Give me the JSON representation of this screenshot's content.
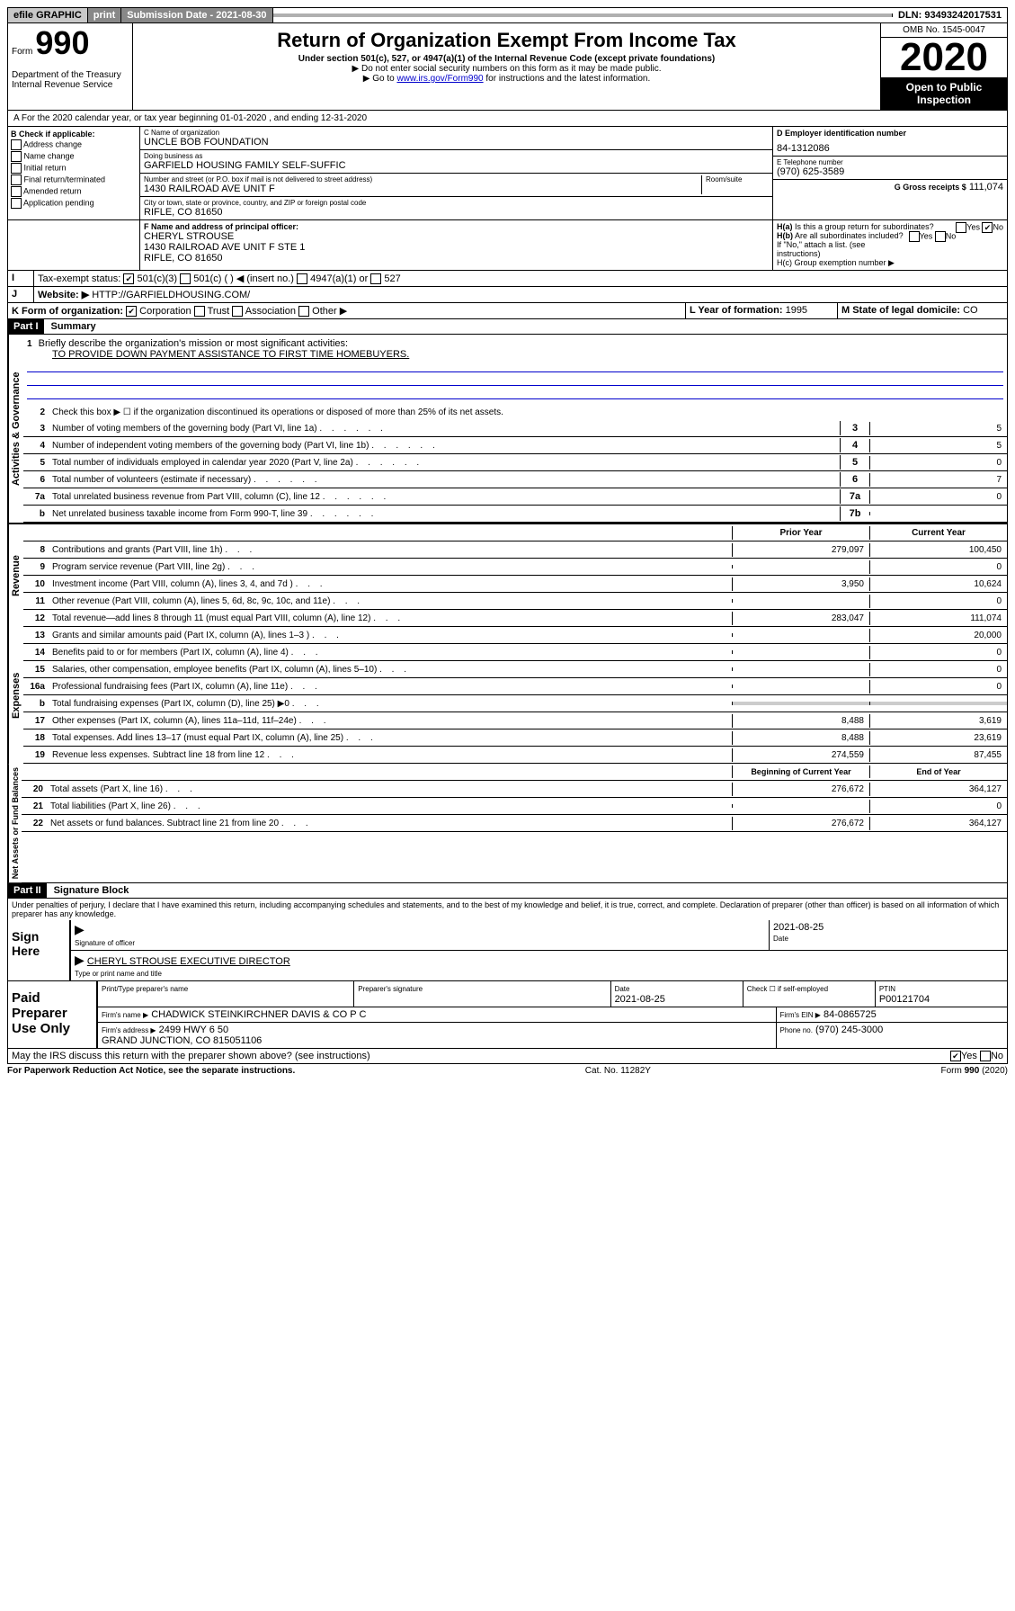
{
  "topbar": {
    "efile": "efile GRAPHIC",
    "print": "print",
    "submission_label": "Submission Date - 2021-08-30",
    "dln_label": "DLN: 93493242017531"
  },
  "header": {
    "form_prefix": "Form",
    "form_number": "990",
    "title": "Return of Organization Exempt From Income Tax",
    "subtitle": "Under section 501(c), 527, or 4947(a)(1) of the Internal Revenue Code (except private foundations)",
    "note1": "▶ Do not enter social security numbers on this form as it may be made public.",
    "note2_pre": "▶ Go to ",
    "note2_link": "www.irs.gov/Form990",
    "note2_post": " for instructions and the latest information.",
    "dept": "Department of the Treasury\nInternal Revenue Service",
    "omb": "OMB No. 1545-0047",
    "year": "2020",
    "open_public": "Open to Public Inspection"
  },
  "sectionA": "A For the 2020 calendar year, or tax year beginning 01-01-2020    , and ending 12-31-2020",
  "boxB": {
    "label": "B Check if applicable:",
    "opts": [
      "Address change",
      "Name change",
      "Initial return",
      "Final return/terminated",
      "Amended return",
      "Application pending"
    ]
  },
  "boxC": {
    "name_label": "C Name of organization",
    "name": "UNCLE BOB FOUNDATION",
    "dba_label": "Doing business as",
    "dba": "GARFIELD HOUSING FAMILY SELF-SUFFIC",
    "addr_label": "Number and street (or P.O. box if mail is not delivered to street address)",
    "addr": "1430 RAILROAD AVE UNIT F",
    "room_label": "Room/suite",
    "city_label": "City or town, state or province, country, and ZIP or foreign postal code",
    "city": "RIFLE, CO  81650"
  },
  "boxD": {
    "label": "D Employer identification number",
    "value": "84-1312086"
  },
  "boxE": {
    "label": "E Telephone number",
    "value": "(970) 625-3589"
  },
  "boxG": {
    "label": "G Gross receipts $",
    "value": "111,074"
  },
  "boxF": {
    "label": "F  Name and address of principal officer:",
    "name": "CHERYL STROUSE",
    "addr": "1430 RAILROAD AVE UNIT F STE 1\nRIFLE, CO  81650"
  },
  "boxH": {
    "a_label": "H(a)  Is this a group return for subordinates?",
    "b_label": "H(b)  Are all subordinates included?",
    "b_note": "If \"No,\" attach a list. (see instructions)",
    "c_label": "H(c)  Group exemption number ▶"
  },
  "boxI": {
    "label": "Tax-exempt status:",
    "opt1": "501(c)(3)",
    "opt2": "501(c) (   ) ◀ (insert no.)",
    "opt3": "4947(a)(1) or",
    "opt4": "527"
  },
  "boxJ": {
    "label": "Website: ▶",
    "value": "HTTP://GARFIELDHOUSING.COM/"
  },
  "boxK": {
    "label": "K Form of organization:",
    "opts": [
      "Corporation",
      "Trust",
      "Association",
      "Other ▶"
    ]
  },
  "boxL": {
    "label": "L Year of formation:",
    "value": "1995"
  },
  "boxM": {
    "label": "M State of legal domicile:",
    "value": "CO"
  },
  "part1": {
    "header": "Part I",
    "title": "Summary",
    "line1_label": "Briefly describe the organization's mission or most significant activities:",
    "line1_text": "TO PROVIDE DOWN PAYMENT ASSISTANCE TO FIRST TIME HOMEBUYERS.",
    "line2": "Check this box ▶ ☐  if the organization discontinued its operations or disposed of more than 25% of its net assets.",
    "lines_a": [
      {
        "n": "3",
        "t": "Number of voting members of the governing body (Part VI, line 1a)",
        "k": "3",
        "v": "5"
      },
      {
        "n": "4",
        "t": "Number of independent voting members of the governing body (Part VI, line 1b)",
        "k": "4",
        "v": "5"
      },
      {
        "n": "5",
        "t": "Total number of individuals employed in calendar year 2020 (Part V, line 2a)",
        "k": "5",
        "v": "0"
      },
      {
        "n": "6",
        "t": "Total number of volunteers (estimate if necessary)",
        "k": "6",
        "v": "7"
      },
      {
        "n": "7a",
        "t": "Total unrelated business revenue from Part VIII, column (C), line 12",
        "k": "7a",
        "v": "0"
      },
      {
        "n": "b",
        "t": "Net unrelated business taxable income from Form 990-T, line 39",
        "k": "7b",
        "v": ""
      }
    ],
    "col_prior": "Prior Year",
    "col_current": "Current Year",
    "revenue_label": "Revenue",
    "revenue": [
      {
        "n": "8",
        "t": "Contributions and grants (Part VIII, line 1h)",
        "p": "279,097",
        "c": "100,450"
      },
      {
        "n": "9",
        "t": "Program service revenue (Part VIII, line 2g)",
        "p": "",
        "c": "0"
      },
      {
        "n": "10",
        "t": "Investment income (Part VIII, column (A), lines 3, 4, and 7d )",
        "p": "3,950",
        "c": "10,624"
      },
      {
        "n": "11",
        "t": "Other revenue (Part VIII, column (A), lines 5, 6d, 8c, 9c, 10c, and 11e)",
        "p": "",
        "c": "0"
      },
      {
        "n": "12",
        "t": "Total revenue—add lines 8 through 11 (must equal Part VIII, column (A), line 12)",
        "p": "283,047",
        "c": "111,074"
      }
    ],
    "expenses_label": "Expenses",
    "expenses": [
      {
        "n": "13",
        "t": "Grants and similar amounts paid (Part IX, column (A), lines 1–3 )",
        "p": "",
        "c": "20,000"
      },
      {
        "n": "14",
        "t": "Benefits paid to or for members (Part IX, column (A), line 4)",
        "p": "",
        "c": "0"
      },
      {
        "n": "15",
        "t": "Salaries, other compensation, employee benefits (Part IX, column (A), lines 5–10)",
        "p": "",
        "c": "0"
      },
      {
        "n": "16a",
        "t": "Professional fundraising fees (Part IX, column (A), line 11e)",
        "p": "",
        "c": "0"
      },
      {
        "n": "b",
        "t": "Total fundraising expenses (Part IX, column (D), line 25) ▶0",
        "p": "gray",
        "c": "gray"
      },
      {
        "n": "17",
        "t": "Other expenses (Part IX, column (A), lines 11a–11d, 11f–24e)",
        "p": "8,488",
        "c": "3,619"
      },
      {
        "n": "18",
        "t": "Total expenses. Add lines 13–17 (must equal Part IX, column (A), line 25)",
        "p": "8,488",
        "c": "23,619"
      },
      {
        "n": "19",
        "t": "Revenue less expenses. Subtract line 18 from line 12",
        "p": "274,559",
        "c": "87,455"
      }
    ],
    "netassets_label": "Net Assets or Fund Balances",
    "col_begin": "Beginning of Current Year",
    "col_end": "End of Year",
    "netassets": [
      {
        "n": "20",
        "t": "Total assets (Part X, line 16)",
        "p": "276,672",
        "c": "364,127"
      },
      {
        "n": "21",
        "t": "Total liabilities (Part X, line 26)",
        "p": "",
        "c": "0"
      },
      {
        "n": "22",
        "t": "Net assets or fund balances. Subtract line 21 from line 20",
        "p": "276,672",
        "c": "364,127"
      }
    ]
  },
  "part2": {
    "header": "Part II",
    "title": "Signature Block",
    "jurat": "Under penalties of perjury, I declare that I have examined this return, including accompanying schedules and statements, and to the best of my knowledge and belief, it is true, correct, and complete. Declaration of preparer (other than officer) is based on all information of which preparer has any knowledge.",
    "sign_here": "Sign Here",
    "sig_officer_label": "Signature of officer",
    "sig_date": "2021-08-25",
    "date_label": "Date",
    "officer_name": "CHERYL STROUSE EXECUTIVE DIRECTOR",
    "officer_name_label": "Type or print name and title",
    "paid_label": "Paid Preparer Use Only",
    "prep_name_label": "Print/Type preparer's name",
    "prep_sig_label": "Preparer's signature",
    "prep_date_label": "Date",
    "prep_date": "2021-08-25",
    "check_self": "Check ☐ if self-employed",
    "ptin_label": "PTIN",
    "ptin": "P00121704",
    "firm_name_label": "Firm's name     ▶",
    "firm_name": "CHADWICK STEINKIRCHNER DAVIS & CO P C",
    "firm_ein_label": "Firm's EIN ▶",
    "firm_ein": "84-0865725",
    "firm_addr_label": "Firm's address ▶",
    "firm_addr": "2499 HWY 6 50\nGRAND JUNCTION, CO  815051106",
    "phone_label": "Phone no.",
    "phone": "(970) 245-3000",
    "discuss": "May the IRS discuss this return with the preparer shown above? (see instructions)"
  },
  "footer": {
    "paperwork": "For Paperwork Reduction Act Notice, see the separate instructions.",
    "cat": "Cat. No. 11282Y",
    "form": "Form 990 (2020)"
  }
}
